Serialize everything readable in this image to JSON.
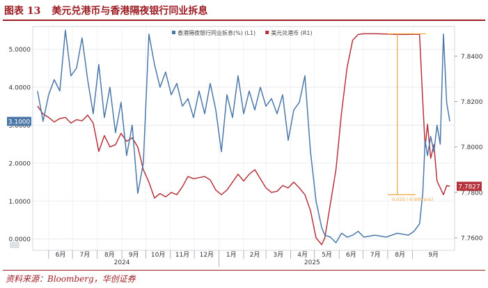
{
  "figure": {
    "label": "图表 13",
    "title": "美元兑港币与香港隔夜银行同业拆息",
    "source": "资料来源：Bloomberg，华创证券"
  },
  "colors": {
    "hkd": "#b5323c",
    "hibor": "#4a77a8",
    "annotation": "#f2a43a",
    "accent": "#9b1c22"
  },
  "chart_data": {
    "type": "line",
    "series": [
      {
        "name": "美元兑港币 (R1)",
        "axis": "right",
        "color": "#b5323c",
        "points": [
          [
            "2024-05-18",
            7.818
          ],
          [
            "2024-05-25",
            7.8145
          ],
          [
            "2024-06-01",
            7.813
          ],
          [
            "2024-06-08",
            7.811
          ],
          [
            "2024-06-15",
            7.8125
          ],
          [
            "2024-06-22",
            7.813
          ],
          [
            "2024-06-29",
            7.8105
          ],
          [
            "2024-07-06",
            7.812
          ],
          [
            "2024-07-13",
            7.8115
          ],
          [
            "2024-07-20",
            7.814
          ],
          [
            "2024-07-27",
            7.8105
          ],
          [
            "2024-08-03",
            7.798
          ],
          [
            "2024-08-10",
            7.805
          ],
          [
            "2024-08-17",
            7.8
          ],
          [
            "2024-08-24",
            7.801
          ],
          [
            "2024-08-31",
            7.806
          ],
          [
            "2024-09-07",
            7.8025
          ],
          [
            "2024-09-14",
            7.804
          ],
          [
            "2024-09-21",
            7.8
          ],
          [
            "2024-09-28",
            7.79
          ],
          [
            "2024-10-05",
            7.7845
          ],
          [
            "2024-10-12",
            7.7775
          ],
          [
            "2024-10-19",
            7.7795
          ],
          [
            "2024-10-26",
            7.778
          ],
          [
            "2024-11-02",
            7.78
          ],
          [
            "2024-11-09",
            7.779
          ],
          [
            "2024-11-16",
            7.7825
          ],
          [
            "2024-11-23",
            7.787
          ],
          [
            "2024-11-30",
            7.786
          ],
          [
            "2024-12-07",
            7.7865
          ],
          [
            "2024-12-14",
            7.787
          ],
          [
            "2024-12-21",
            7.7855
          ],
          [
            "2024-12-28",
            7.781
          ],
          [
            "2025-01-04",
            7.779
          ],
          [
            "2025-01-11",
            7.781
          ],
          [
            "2025-01-18",
            7.7845
          ],
          [
            "2025-01-25",
            7.788
          ],
          [
            "2025-02-01",
            7.785
          ],
          [
            "2025-02-08",
            7.788
          ],
          [
            "2025-02-15",
            7.79
          ],
          [
            "2025-02-22",
            7.786
          ],
          [
            "2025-03-01",
            7.782
          ],
          [
            "2025-03-08",
            7.78
          ],
          [
            "2025-03-15",
            7.7805
          ],
          [
            "2025-03-22",
            7.783
          ],
          [
            "2025-03-29",
            7.782
          ],
          [
            "2025-04-05",
            7.7845
          ],
          [
            "2025-04-12",
            7.782
          ],
          [
            "2025-04-19",
            7.779
          ],
          [
            "2025-04-26",
            7.772
          ],
          [
            "2025-05-03",
            7.76
          ],
          [
            "2025-05-10",
            7.757
          ],
          [
            "2025-05-14",
            7.76
          ],
          [
            "2025-05-21",
            7.775
          ],
          [
            "2025-05-28",
            7.79
          ],
          [
            "2025-06-04",
            7.815
          ],
          [
            "2025-06-11",
            7.835
          ],
          [
            "2025-06-18",
            7.847
          ],
          [
            "2025-06-25",
            7.8495
          ],
          [
            "2025-07-02",
            7.8498
          ],
          [
            "2025-07-16",
            7.8498
          ],
          [
            "2025-07-30",
            7.8497
          ],
          [
            "2025-08-13",
            7.8495
          ],
          [
            "2025-08-27",
            7.8495
          ],
          [
            "2025-09-03",
            7.8496
          ],
          [
            "2025-09-10",
            7.8496
          ],
          [
            "2025-09-14",
            7.82
          ],
          [
            "2025-09-17",
            7.8
          ],
          [
            "2025-09-20",
            7.81
          ],
          [
            "2025-09-24",
            7.795
          ],
          [
            "2025-09-28",
            7.801
          ],
          [
            "2025-10-02",
            7.785
          ],
          [
            "2025-10-06",
            7.782
          ],
          [
            "2025-10-10",
            7.779
          ],
          [
            "2025-10-14",
            7.783
          ],
          [
            "2025-10-18",
            7.7827
          ]
        ]
      },
      {
        "name": "香港隔夜银行同业拆息(%) (L1)",
        "axis": "left",
        "color": "#4a77a8",
        "points": [
          [
            "2024-05-18",
            3.9
          ],
          [
            "2024-05-25",
            3.1
          ],
          [
            "2024-06-01",
            3.8
          ],
          [
            "2024-06-08",
            4.2
          ],
          [
            "2024-06-15",
            3.9
          ],
          [
            "2024-06-22",
            5.5
          ],
          [
            "2024-06-29",
            4.3
          ],
          [
            "2024-07-06",
            4.5
          ],
          [
            "2024-07-13",
            5.3
          ],
          [
            "2024-07-20",
            4.2
          ],
          [
            "2024-07-27",
            3.3
          ],
          [
            "2024-08-03",
            4.6
          ],
          [
            "2024-08-10",
            3.2
          ],
          [
            "2024-08-17",
            4.0
          ],
          [
            "2024-08-24",
            2.8
          ],
          [
            "2024-08-31",
            3.6
          ],
          [
            "2024-09-07",
            2.2
          ],
          [
            "2024-09-14",
            3.0
          ],
          [
            "2024-09-21",
            1.2
          ],
          [
            "2024-09-28",
            2.0
          ],
          [
            "2024-10-05",
            5.4
          ],
          [
            "2024-10-12",
            4.6
          ],
          [
            "2024-10-19",
            4.0
          ],
          [
            "2024-10-26",
            4.4
          ],
          [
            "2024-11-02",
            3.8
          ],
          [
            "2024-11-09",
            4.1
          ],
          [
            "2024-11-16",
            3.5
          ],
          [
            "2024-11-23",
            3.7
          ],
          [
            "2024-11-30",
            3.2
          ],
          [
            "2024-12-07",
            3.9
          ],
          [
            "2024-12-14",
            3.3
          ],
          [
            "2024-12-21",
            4.1
          ],
          [
            "2024-12-28",
            3.4
          ],
          [
            "2025-01-04",
            2.3
          ],
          [
            "2025-01-11",
            3.8
          ],
          [
            "2025-01-18",
            3.2
          ],
          [
            "2025-01-25",
            4.3
          ],
          [
            "2025-02-01",
            3.3
          ],
          [
            "2025-02-08",
            3.9
          ],
          [
            "2025-02-15",
            3.4
          ],
          [
            "2025-02-22",
            4.0
          ],
          [
            "2025-03-01",
            3.5
          ],
          [
            "2025-03-08",
            3.7
          ],
          [
            "2025-03-15",
            3.3
          ],
          [
            "2025-03-22",
            3.8
          ],
          [
            "2025-03-29",
            2.6
          ],
          [
            "2025-04-05",
            3.4
          ],
          [
            "2025-04-12",
            3.6
          ],
          [
            "2025-04-19",
            4.3
          ],
          [
            "2025-04-26",
            2.3
          ],
          [
            "2025-05-03",
            1.0
          ],
          [
            "2025-05-10",
            0.3
          ],
          [
            "2025-05-14",
            0.1
          ],
          [
            "2025-05-21",
            0.05
          ],
          [
            "2025-05-28",
            -0.1
          ],
          [
            "2025-06-04",
            0.15
          ],
          [
            "2025-06-11",
            0.05
          ],
          [
            "2025-06-18",
            0.1
          ],
          [
            "2025-06-25",
            0.2
          ],
          [
            "2025-07-02",
            0.05
          ],
          [
            "2025-07-16",
            0.1
          ],
          [
            "2025-07-30",
            0.05
          ],
          [
            "2025-08-13",
            0.15
          ],
          [
            "2025-08-27",
            0.1
          ],
          [
            "2025-09-03",
            0.2
          ],
          [
            "2025-09-10",
            0.4
          ],
          [
            "2025-09-14",
            1.2
          ],
          [
            "2025-09-17",
            2.6
          ],
          [
            "2025-09-20",
            2.2
          ],
          [
            "2025-09-24",
            2.7
          ],
          [
            "2025-09-28",
            2.3
          ],
          [
            "2025-10-02",
            3.0
          ],
          [
            "2025-10-06",
            2.5
          ],
          [
            "2025-10-10",
            5.4
          ],
          [
            "2025-10-14",
            3.6
          ],
          [
            "2025-10-18",
            3.1
          ]
        ]
      }
    ],
    "left_axis": {
      "ylim": [
        -0.3,
        5.6
      ],
      "ticks": [
        0,
        1,
        2,
        3,
        4,
        5
      ],
      "tick_labels": [
        "0.0000",
        "1.0000",
        "2.0000",
        "3.0000",
        "4.0000",
        "5.0000"
      ]
    },
    "right_axis": {
      "ylim": [
        7.7545,
        7.853
      ],
      "ticks": [
        7.76,
        7.78,
        7.8,
        7.82,
        7.84
      ],
      "tick_labels": [
        "7.7600",
        "7.7800",
        "7.8000",
        "7.8200",
        "7.8400"
      ]
    },
    "x_axis": {
      "range": [
        "2024-05-12",
        "2025-10-24"
      ],
      "months": [
        {
          "label": "6月",
          "date": "2024-06-01"
        },
        {
          "label": "7月",
          "date": "2024-07-01"
        },
        {
          "label": "8月",
          "date": "2024-08-01"
        },
        {
          "label": "9月",
          "date": "2024-09-01"
        },
        {
          "label": "10月",
          "date": "2024-10-01"
        },
        {
          "label": "11月",
          "date": "2024-11-01"
        },
        {
          "label": "12月",
          "date": "2024-12-01"
        },
        {
          "label": "1月",
          "date": "2025-01-01"
        },
        {
          "label": "2月",
          "date": "2025-02-01"
        },
        {
          "label": "3月",
          "date": "2025-03-01"
        },
        {
          "label": "4月",
          "date": "2025-04-01"
        },
        {
          "label": "5月",
          "date": "2025-05-01"
        },
        {
          "label": "6月",
          "date": "2025-06-01"
        },
        {
          "label": "7月",
          "date": "2025-07-01"
        },
        {
          "label": "8月",
          "date": "2025-08-01"
        },
        {
          "label": "9月",
          "date": "2025-09-01"
        }
      ],
      "years": [
        {
          "label": "2024",
          "date": "2024-09-01"
        },
        {
          "label": "2025",
          "date": "2025-04-28"
        }
      ]
    },
    "current_labels": {
      "left": {
        "value": 3.1,
        "text": "3.1000"
      },
      "right": {
        "value": 7.7827,
        "text": "7.7827"
      }
    },
    "annotation": {
      "text": "0.025 (-0.69trans)",
      "line_level": 7.8498,
      "line_from": "2025-08-01",
      "line_to": "2025-09-18",
      "bar_date": "2025-08-13",
      "bar_top": 7.8498,
      "bar_bottom": 7.779,
      "low_from": "2025-08-01",
      "low_to": "2025-09-05",
      "low_level": 7.779
    },
    "legend_position": "top-center",
    "grid": true
  }
}
